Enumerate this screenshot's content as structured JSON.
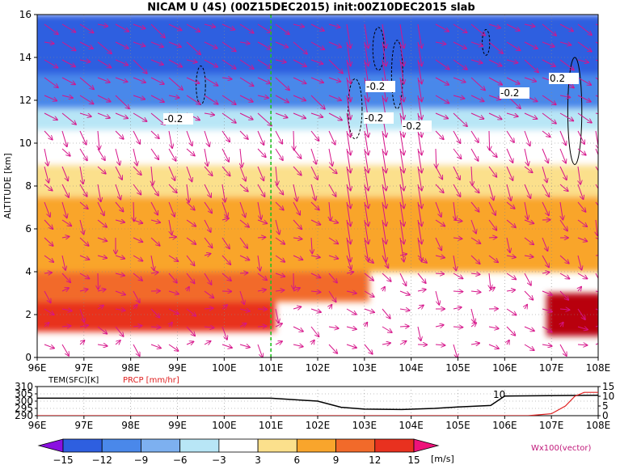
{
  "chart_data": [
    {
      "type": "heatmap",
      "title": "NICAM U (4S) (00Z15DEC2015) init:00Z10DEC2015 slab",
      "ylabel": "ALTITUDE [km]",
      "xlim": [
        96,
        108
      ],
      "ylim": [
        0,
        16
      ],
      "x_ticks": [
        96,
        97,
        98,
        99,
        100,
        101,
        102,
        103,
        104,
        105,
        106,
        107,
        108
      ],
      "x_tick_labels": [
        "96E",
        "97E",
        "98E",
        "99E",
        "100E",
        "101E",
        "102E",
        "103E",
        "104E",
        "105E",
        "106E",
        "107E",
        "108E"
      ],
      "y_ticks": [
        0,
        2,
        4,
        6,
        8,
        10,
        12,
        14,
        16
      ],
      "grid": true,
      "marker_line_x": 101,
      "contour_labels": [
        "-0.2",
        "-0.2",
        "-0.2",
        "-0.2",
        "-0.2",
        "0.2"
      ],
      "vector_legend": "Wx100(vector)",
      "colorbar": {
        "unit": "[m/s]",
        "levels": [
          -15,
          -12,
          -9,
          -6,
          -3,
          3,
          6,
          9,
          12,
          15
        ],
        "colors": [
          "#8a10e0",
          "#2e5fe0",
          "#4a88ea",
          "#7db0f0",
          "#b8e6f6",
          "#ffffff",
          "#fbe08c",
          "#f9a52c",
          "#f26a2a",
          "#e8311f",
          "#b8060d",
          "#ee127a"
        ]
      },
      "zones": [
        {
          "x": [
            96,
            108
          ],
          "y": [
            13.2,
            16
          ],
          "u": -15
        },
        {
          "x": [
            96,
            108
          ],
          "y": [
            11.6,
            13.2
          ],
          "u": -10
        },
        {
          "x": [
            96,
            108
          ],
          "y": [
            10.6,
            11.6
          ],
          "u": -4
        },
        {
          "x": [
            96,
            108
          ],
          "y": [
            9.0,
            10.6
          ],
          "u": 0
        },
        {
          "x": [
            96,
            108
          ],
          "y": [
            7.5,
            9.0
          ],
          "u": 4
        },
        {
          "x": [
            96,
            108
          ],
          "y": [
            4.0,
            7.5
          ],
          "u": 7
        },
        {
          "x": [
            96,
            103
          ],
          "y": [
            2.6,
            4.0
          ],
          "u": 10
        },
        {
          "x": [
            96,
            101
          ],
          "y": [
            1.2,
            2.6
          ],
          "u": 13
        },
        {
          "x": [
            107,
            108
          ],
          "y": [
            1.0,
            3.0
          ],
          "u": 16
        }
      ]
    },
    {
      "type": "line",
      "x_tick_labels": [
        "96E",
        "97E",
        "98E",
        "99E",
        "100E",
        "101E",
        "102E",
        "103E",
        "104E",
        "105E",
        "106E",
        "107E",
        "108E"
      ],
      "xlim": [
        96,
        108
      ],
      "left_axis": {
        "label": "TEM(SFC)[K]",
        "ticks": [
          "310",
          "305",
          "300",
          "295",
          "290"
        ],
        "range": [
          290,
          310
        ]
      },
      "right_axis": {
        "label": "PRCP [mm/hr]",
        "ticks": [
          "15",
          "10",
          "5",
          "0"
        ],
        "range": [
          0,
          15
        ]
      },
      "annotation": "10",
      "series": [
        {
          "name": "TEM(SFC)[K]",
          "color": "#000000",
          "x": [
            96,
            100,
            101,
            102,
            102.5,
            103,
            103.8,
            104.5,
            105,
            105.7,
            106,
            108
          ],
          "y": [
            302,
            302,
            302,
            300,
            295.8,
            294.5,
            294.2,
            295,
            296,
            297,
            303.5,
            304
          ]
        },
        {
          "name": "PRCP [mm/hr]",
          "color": "#e02020",
          "x": [
            96,
            106.5,
            107,
            107.3,
            107.5,
            107.7,
            108
          ],
          "y": [
            0,
            0,
            1,
            5,
            10,
            12,
            12
          ]
        }
      ]
    }
  ]
}
